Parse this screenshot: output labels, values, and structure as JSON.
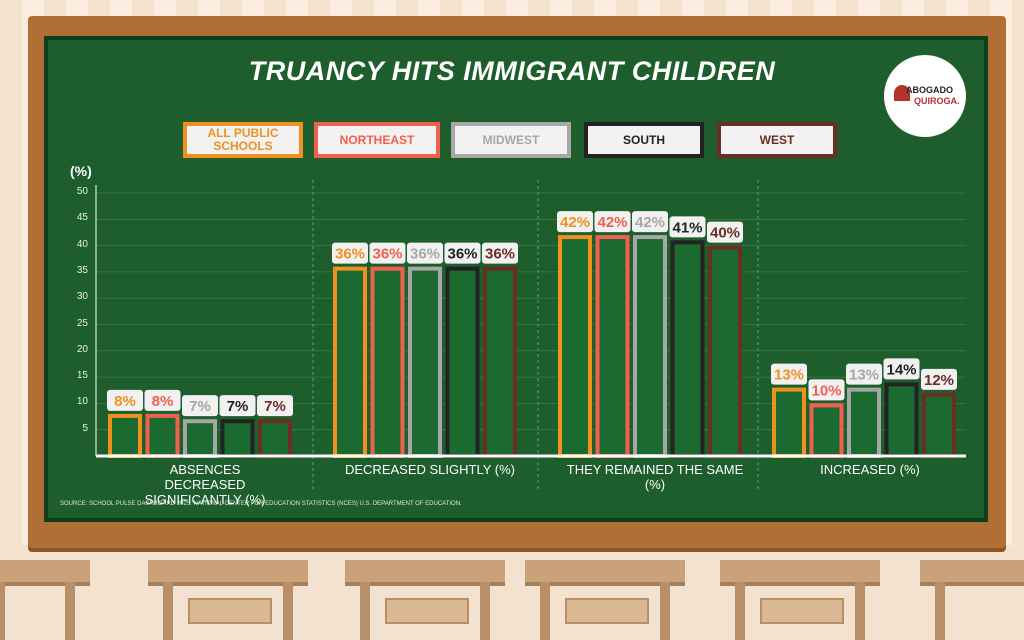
{
  "title": "TRUANCY HITS IMMIGRANT CHILDREN",
  "logo": {
    "line1": "ABOGADO",
    "line2": "QUIROGA."
  },
  "unit_label": "(%)",
  "source": "SOURCE: SCHOOL PULSE DASHBOARD 2025. NATIONAL CENTER FOR EDUCATION STATISTICS (NCES) U.S. DEPARTMENT OF EDUCATION.",
  "legend": [
    {
      "label": "ALL PUBLIC SCHOOLS",
      "color": "#f0901e",
      "text_color": "#f0901e"
    },
    {
      "label": "NORTHEAST",
      "color": "#f0604f",
      "text_color": "#f0604f"
    },
    {
      "label": "MIDWEST",
      "color": "#a7a7a7",
      "text_color": "#a7a7a7"
    },
    {
      "label": "SOUTH",
      "color": "#232323",
      "text_color": "#232323"
    },
    {
      "label": "WEST",
      "color": "#6b2e24",
      "text_color": "#6b2e24"
    }
  ],
  "chart_data": {
    "type": "bar",
    "categories": [
      "ABSENCES DECREASED SIGNIFICANTLY (%)",
      "DECREASED SLIGHTLY (%)",
      "THEY REMAINED THE SAME (%)",
      "INCREASED (%)"
    ],
    "series": [
      {
        "name": "ALL PUBLIC SCHOOLS",
        "values": [
          8,
          36,
          42,
          13
        ],
        "labels": [
          "8%",
          "36%",
          "42%",
          "13%"
        ]
      },
      {
        "name": "NORTHEAST",
        "values": [
          8,
          36,
          42,
          10
        ],
        "labels": [
          "8%",
          "36%",
          "42%",
          "10%"
        ]
      },
      {
        "name": "MIDWEST",
        "values": [
          7,
          36,
          42,
          13
        ],
        "labels": [
          "7%",
          "36%",
          "42%",
          "13%"
        ]
      },
      {
        "name": "SOUTH",
        "values": [
          7,
          36,
          41,
          14
        ],
        "labels": [
          "7%",
          "36%",
          "41%",
          "14%"
        ]
      },
      {
        "name": "WEST",
        "values": [
          7,
          36,
          40,
          12
        ],
        "labels": [
          "7%",
          "36%",
          "40%",
          "12%"
        ]
      }
    ],
    "ylabel": "(%)",
    "ylim": [
      0,
      50
    ],
    "yticks": [
      5,
      10,
      15,
      20,
      25,
      30,
      35,
      40,
      45,
      50
    ],
    "grid": true,
    "legend_position": "top"
  }
}
